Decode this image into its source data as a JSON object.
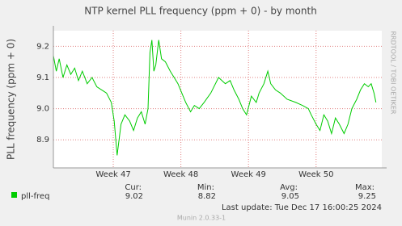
{
  "chart_data": {
    "type": "line",
    "title": "NTP kernel PLL frequency (ppm + 0) - by month",
    "y_label": "PLL frequency (ppm + 0)",
    "side_label": "RRDTOOL / TOBI OETIKER",
    "x": [
      0,
      0.3,
      0.6,
      1,
      1.4,
      1.8,
      2.2,
      2.6,
      3,
      3.5,
      4,
      4.5,
      5,
      5.5,
      6,
      6.3,
      6.6,
      7,
      7.4,
      7.9,
      8.3,
      8.7,
      9.1,
      9.5,
      9.8,
      10,
      10.2,
      10.4,
      10.6,
      10.9,
      11.2,
      11.6,
      12.1,
      12.5,
      12.9,
      13.3,
      13.7,
      14.2,
      14.6,
      15.1,
      15.6,
      16.3,
      17.1,
      17.8,
      18.3,
      18.7,
      19.2,
      19.6,
      20,
      20.5,
      21,
      21.3,
      21.8,
      22.2,
      22.5,
      23,
      23.5,
      24.2,
      25.1,
      25.8,
      26.4,
      26.7,
      27.2,
      27.6,
      28,
      28.4,
      28.8,
      29.2,
      29.6,
      30.1,
      30.5,
      30.9,
      31.4,
      31.8,
      32.2,
      32.6,
      32.9,
      33.2,
      33.4
    ],
    "series": [
      {
        "name": "pll-freq",
        "color": "#00cc00",
        "values": [
          9.17,
          9.12,
          9.16,
          9.1,
          9.14,
          9.11,
          9.13,
          9.09,
          9.12,
          9.08,
          9.1,
          9.07,
          9.06,
          9.05,
          9.02,
          8.96,
          8.85,
          8.95,
          8.98,
          8.96,
          8.93,
          8.97,
          8.99,
          8.95,
          9.0,
          9.18,
          9.22,
          9.12,
          9.14,
          9.22,
          9.16,
          9.15,
          9.12,
          9.1,
          9.08,
          9.05,
          9.02,
          8.99,
          9.01,
          9.0,
          9.02,
          9.05,
          9.1,
          9.08,
          9.09,
          9.06,
          9.03,
          9.0,
          8.98,
          9.04,
          9.02,
          9.05,
          9.08,
          9.12,
          9.08,
          9.06,
          9.05,
          9.03,
          9.02,
          9.01,
          9.0,
          8.98,
          8.95,
          8.93,
          8.98,
          8.96,
          8.92,
          8.97,
          8.95,
          8.92,
          8.95,
          9.0,
          9.03,
          9.06,
          9.08,
          9.07,
          9.08,
          9.05,
          9.02
        ]
      }
    ],
    "xlim": [
      0,
      34
    ],
    "xticks": [
      {
        "value": 6.2,
        "label": "Week 47"
      },
      {
        "value": 13.2,
        "label": "Week 48"
      },
      {
        "value": 20.2,
        "label": "Week 49"
      },
      {
        "value": 27.2,
        "label": "Week 50"
      }
    ],
    "ylim": [
      8.81,
      9.25
    ],
    "yticks": [
      8.9,
      {
        "value": 9.0,
        "label": "9.0"
      },
      9.1,
      9.2
    ],
    "grid": true,
    "stats": {
      "headers": [
        "Cur:",
        "Min:",
        "Avg:",
        "Max:"
      ],
      "values": [
        "9.02",
        "8.82",
        "9.05",
        "9.25"
      ]
    },
    "last_update": "Last update: Tue Dec 17 16:00:25 2024",
    "footer": "Munin 2.0.33-1"
  }
}
